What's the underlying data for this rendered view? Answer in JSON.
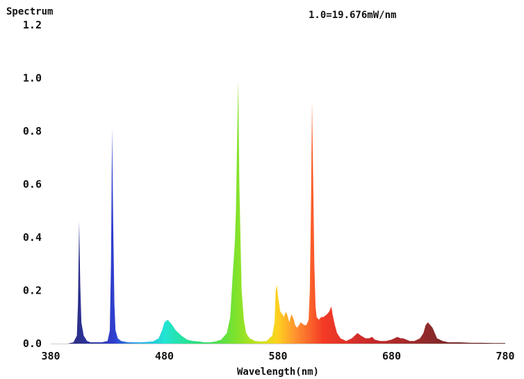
{
  "chart_data": {
    "type": "area",
    "title": "Spectrum",
    "annotation": "1.0=19.676mW/nm",
    "xlabel": "Wavelength(nm)",
    "ylabel": "",
    "xlim": [
      380,
      780
    ],
    "ylim": [
      0,
      1.2
    ],
    "x_ticks": [
      "380",
      "480",
      "580",
      "680",
      "780"
    ],
    "y_ticks": [
      "0.0",
      "0.2",
      "0.4",
      "0.6",
      "0.8",
      "1.0",
      "1.2"
    ],
    "grid": false,
    "series": [
      {
        "x": [
          380,
          395,
          400,
          403,
          404,
          405,
          406,
          407,
          409,
          412,
          415,
          425,
          430,
          432,
          433,
          434,
          435,
          436,
          437,
          439,
          442,
          448,
          460,
          470,
          475,
          478,
          480,
          483,
          485,
          487,
          490,
          495,
          500,
          505,
          510,
          515,
          520,
          525,
          530,
          535,
          538,
          540,
          542,
          543,
          544,
          545,
          546,
          547,
          548,
          550,
          552,
          555,
          560,
          565,
          570,
          575,
          577,
          578,
          579,
          580,
          582,
          584,
          585,
          587,
          588,
          590,
          591,
          592,
          594,
          595,
          597,
          600,
          603,
          605,
          607,
          608,
          609,
          610,
          611,
          612,
          613,
          614,
          616,
          618,
          620,
          623,
          625,
          627,
          628,
          630,
          632,
          635,
          640,
          645,
          650,
          653,
          657,
          660,
          663,
          665,
          670,
          675,
          680,
          685,
          688,
          690,
          693,
          696,
          700,
          705,
          708,
          710,
          712,
          714,
          716,
          718,
          720,
          725,
          730,
          740,
          750,
          760,
          770,
          780
        ],
        "y": [
          0.0,
          0.0,
          0.005,
          0.03,
          0.15,
          0.46,
          0.22,
          0.08,
          0.03,
          0.01,
          0.005,
          0.005,
          0.01,
          0.05,
          0.3,
          0.81,
          0.45,
          0.15,
          0.05,
          0.02,
          0.01,
          0.005,
          0.005,
          0.008,
          0.02,
          0.05,
          0.08,
          0.09,
          0.08,
          0.07,
          0.05,
          0.03,
          0.015,
          0.01,
          0.008,
          0.005,
          0.005,
          0.008,
          0.015,
          0.04,
          0.1,
          0.25,
          0.38,
          0.5,
          0.75,
          0.99,
          0.6,
          0.4,
          0.2,
          0.09,
          0.04,
          0.02,
          0.01,
          0.008,
          0.01,
          0.03,
          0.08,
          0.2,
          0.22,
          0.18,
          0.12,
          0.11,
          0.1,
          0.12,
          0.11,
          0.08,
          0.1,
          0.11,
          0.09,
          0.07,
          0.06,
          0.08,
          0.07,
          0.07,
          0.09,
          0.2,
          0.5,
          0.91,
          0.6,
          0.3,
          0.14,
          0.1,
          0.09,
          0.1,
          0.1,
          0.11,
          0.12,
          0.14,
          0.11,
          0.07,
          0.04,
          0.02,
          0.01,
          0.02,
          0.04,
          0.03,
          0.02,
          0.02,
          0.025,
          0.015,
          0.01,
          0.01,
          0.015,
          0.025,
          0.02,
          0.02,
          0.015,
          0.01,
          0.01,
          0.02,
          0.04,
          0.07,
          0.08,
          0.07,
          0.06,
          0.04,
          0.02,
          0.01,
          0.005,
          0.005,
          0.003,
          0.003,
          0.002,
          0.002
        ]
      }
    ]
  }
}
